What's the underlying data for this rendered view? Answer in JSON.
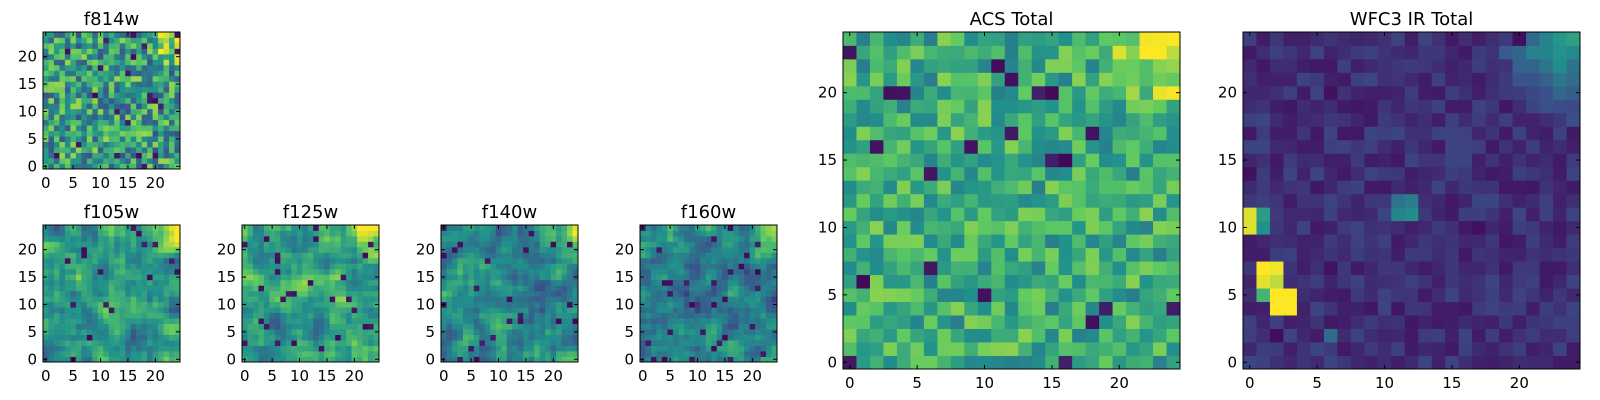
{
  "figure_title": "",
  "colormap": "viridis",
  "colormap_stops": [
    "#440154",
    "#3b528b",
    "#21918c",
    "#5ec962",
    "#fde725"
  ],
  "chart_data": [
    {
      "type": "heatmap",
      "title": "f814w",
      "grid": [
        25,
        25
      ],
      "xlim": [
        0,
        24
      ],
      "ylim": [
        0,
        24
      ],
      "xticks": [
        0,
        5,
        10,
        15,
        20
      ],
      "yticks": [
        0,
        5,
        10,
        15,
        20
      ],
      "xlabel": "",
      "ylabel": "",
      "pattern": "noise",
      "base": 0.55,
      "noise": 0.3,
      "bright_corner": "top-right",
      "hot_spots": []
    },
    {
      "type": "heatmap",
      "title": "f105w",
      "grid": [
        25,
        25
      ],
      "xlim": [
        0,
        24
      ],
      "ylim": [
        0,
        24
      ],
      "xticks": [
        0,
        5,
        10,
        15,
        20
      ],
      "yticks": [
        0,
        5,
        10,
        15,
        20
      ],
      "xlabel": "",
      "ylabel": "",
      "pattern": "smooth",
      "base": 0.52,
      "noise": 0.22,
      "bright_corner": "top-right",
      "hot_spots": []
    },
    {
      "type": "heatmap",
      "title": "f125w",
      "grid": [
        25,
        25
      ],
      "xlim": [
        0,
        24
      ],
      "ylim": [
        0,
        24
      ],
      "xticks": [
        0,
        5,
        10,
        15,
        20
      ],
      "yticks": [
        0,
        5,
        10,
        15,
        20
      ],
      "xlabel": "",
      "ylabel": "",
      "pattern": "smooth",
      "base": 0.55,
      "noise": 0.22,
      "bright_corner": "top-right",
      "hot_spots": []
    },
    {
      "type": "heatmap",
      "title": "f140w",
      "grid": [
        25,
        25
      ],
      "xlim": [
        0,
        24
      ],
      "ylim": [
        0,
        24
      ],
      "xticks": [
        0,
        5,
        10,
        15,
        20
      ],
      "yticks": [
        0,
        5,
        10,
        15,
        20
      ],
      "xlabel": "",
      "ylabel": "",
      "pattern": "smooth",
      "base": 0.45,
      "noise": 0.22,
      "bright_corner": "top-right",
      "hot_spots": []
    },
    {
      "type": "heatmap",
      "title": "f160w",
      "grid": [
        25,
        25
      ],
      "xlim": [
        0,
        24
      ],
      "ylim": [
        0,
        24
      ],
      "xticks": [
        0,
        5,
        10,
        15,
        20
      ],
      "yticks": [
        0,
        5,
        10,
        15,
        20
      ],
      "xlabel": "",
      "ylabel": "",
      "pattern": "smooth",
      "base": 0.42,
      "noise": 0.22,
      "bright_corner": "top-right",
      "hot_spots": []
    },
    {
      "type": "heatmap",
      "title": "ACS Total",
      "grid": [
        25,
        25
      ],
      "xlim": [
        0,
        24
      ],
      "ylim": [
        0,
        24
      ],
      "xticks": [
        0,
        5,
        10,
        15,
        20
      ],
      "yticks": [
        0,
        5,
        10,
        15,
        20
      ],
      "xlabel": "",
      "ylabel": "",
      "pattern": "noise",
      "base": 0.62,
      "noise": 0.2,
      "bright_corner": "top-right",
      "hot_spots": []
    },
    {
      "type": "heatmap",
      "title": "WFC3 IR Total",
      "grid": [
        25,
        25
      ],
      "xlim": [
        0,
        24
      ],
      "ylim": [
        0,
        24
      ],
      "xticks": [
        0,
        5,
        10,
        15,
        20
      ],
      "yticks": [
        0,
        5,
        10,
        15,
        20
      ],
      "xlabel": "",
      "ylabel": "",
      "pattern": "noise",
      "base": 0.14,
      "noise": 0.07,
      "bright_corner": "top-right",
      "hot_spots": [
        {
          "x": 1,
          "y": 7,
          "v": 1.0
        },
        {
          "x": 2,
          "y": 7,
          "v": 0.98
        },
        {
          "x": 1,
          "y": 6,
          "v": 0.96
        },
        {
          "x": 2,
          "y": 6,
          "v": 0.9
        },
        {
          "x": 1,
          "y": 5,
          "v": 0.65
        },
        {
          "x": 2,
          "y": 5,
          "v": 1.0
        },
        {
          "x": 3,
          "y": 5,
          "v": 1.0
        },
        {
          "x": 2,
          "y": 4,
          "v": 1.0
        },
        {
          "x": 3,
          "y": 4,
          "v": 1.0
        },
        {
          "x": 0,
          "y": 11,
          "v": 0.95
        },
        {
          "x": 0,
          "y": 10,
          "v": 0.95
        },
        {
          "x": 1,
          "y": 11,
          "v": 0.55
        },
        {
          "x": 1,
          "y": 10,
          "v": 0.5
        },
        {
          "x": 11,
          "y": 11,
          "v": 0.45
        },
        {
          "x": 12,
          "y": 11,
          "v": 0.48
        },
        {
          "x": 11,
          "y": 12,
          "v": 0.38
        },
        {
          "x": 12,
          "y": 12,
          "v": 0.42
        },
        {
          "x": 6,
          "y": 2,
          "v": 0.35
        }
      ]
    }
  ]
}
